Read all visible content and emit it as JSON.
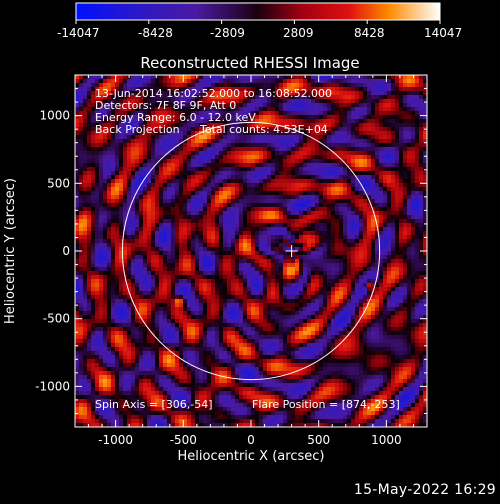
{
  "chart_data": {
    "type": "heatmap",
    "title": "Reconstructed RHESSI Image",
    "xlabel": "Heliocentric X (arcsec)",
    "ylabel": "Heliocentric Y (arcsec)",
    "xlim": [
      -1300,
      1300
    ],
    "ylim": [
      -1300,
      1300
    ],
    "xticks": [
      -1000,
      -500,
      0,
      500,
      1000
    ],
    "yticks": [
      -1000,
      -500,
      0,
      500,
      1000
    ],
    "xtick_labels": [
      "-1000",
      "-500",
      "0",
      "500",
      "1000"
    ],
    "ytick_labels": [
      "-1000",
      "-500",
      "0",
      "500",
      "1000"
    ],
    "colorbar": {
      "range": [
        -14047,
        14047
      ],
      "tick_labels": [
        "-14047",
        "-8428",
        "-2809",
        "2809",
        "8428",
        "14047"
      ]
    },
    "annotations": {
      "time": "13-Jun-2014 16:02:52.000 to 16:08:52.000",
      "detectors": "Detectors: 7F 8F 9F, Att 0",
      "energy": "Energy Range: 6.0 - 12.0 keV",
      "method": "Back Projection",
      "counts": "Total counts: 4.53E+04",
      "spin_axis": "Spin Axis = [306,-54]",
      "flare_position": "Flare Position = [874,-253]"
    },
    "solar_limb_radius": 950,
    "center_marker": [
      300,
      0
    ],
    "sources": [
      {
        "x": 874,
        "y": -253,
        "value": 14047
      },
      {
        "x": -530,
        "y": -370,
        "value": 12500
      }
    ],
    "colors": {
      "background": "#000000",
      "limb": "#ffffff"
    }
  },
  "footer": "15-May-2022 16:29"
}
